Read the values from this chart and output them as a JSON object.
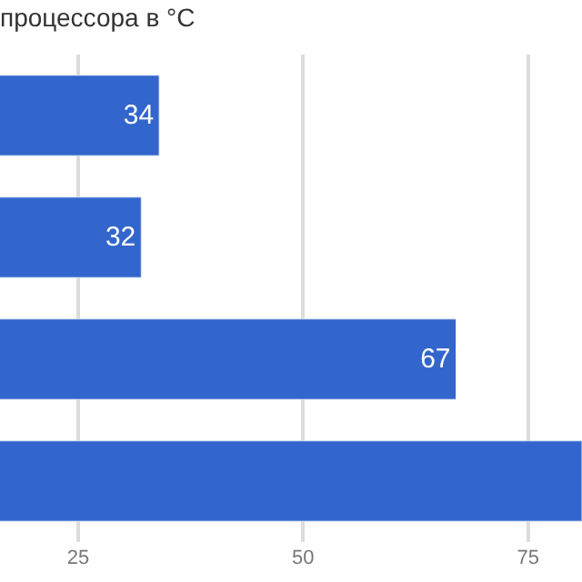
{
  "chart_data": {
    "type": "bar",
    "orientation": "horizontal",
    "title": "процессора в °C",
    "categories": [
      null,
      null,
      null,
      null
    ],
    "values": [
      34,
      32,
      67,
      81
    ],
    "value_labels": [
      "34",
      "32",
      "67",
      null
    ],
    "color": "#3366cc",
    "xlim": [
      16.3,
      81
    ],
    "xticks": [
      25,
      50,
      75
    ],
    "grid": "x",
    "tick_labels": "x"
  }
}
